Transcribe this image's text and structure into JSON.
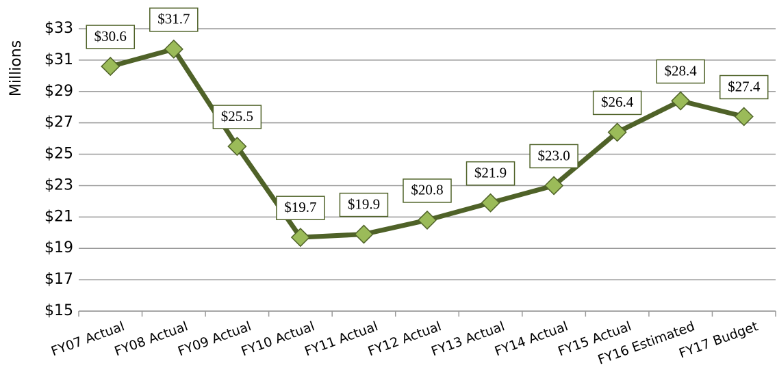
{
  "chart_data": {
    "type": "line",
    "y_label": "Millions",
    "categories": [
      "FY07 Actual",
      "FY08 Actual",
      "FY09 Actual",
      "FY10 Actual",
      "FY11 Actual",
      "FY12 Actual",
      "FY13 Actual",
      "FY14 Actual",
      "FY15 Actual",
      "FY16 Estimated",
      "FY17 Budget"
    ],
    "series": [
      {
        "name": "Millions",
        "color": "#4f6228",
        "marker_color": "#9bbb59",
        "values": [
          30.6,
          31.7,
          25.5,
          19.7,
          19.9,
          20.8,
          21.9,
          23.0,
          26.4,
          28.4,
          27.4
        ],
        "value_labels": [
          "$30.6",
          "$31.7",
          "$25.5",
          "$19.7",
          "$19.9",
          "$20.8",
          "$21.9",
          "$23.0",
          "$26.4",
          "$28.4",
          "$27.4"
        ]
      }
    ],
    "ylim": [
      15,
      33
    ],
    "yticks": [
      {
        "value": 15,
        "label": "$15"
      },
      {
        "value": 17,
        "label": "$17"
      },
      {
        "value": 19,
        "label": "$19"
      },
      {
        "value": 21,
        "label": "$21"
      },
      {
        "value": 23,
        "label": "$23"
      },
      {
        "value": 25,
        "label": "$25"
      },
      {
        "value": 27,
        "label": "$27"
      },
      {
        "value": 29,
        "label": "$29"
      },
      {
        "value": 31,
        "label": "$31"
      },
      {
        "value": 33,
        "label": "$33"
      }
    ],
    "grid": true
  }
}
